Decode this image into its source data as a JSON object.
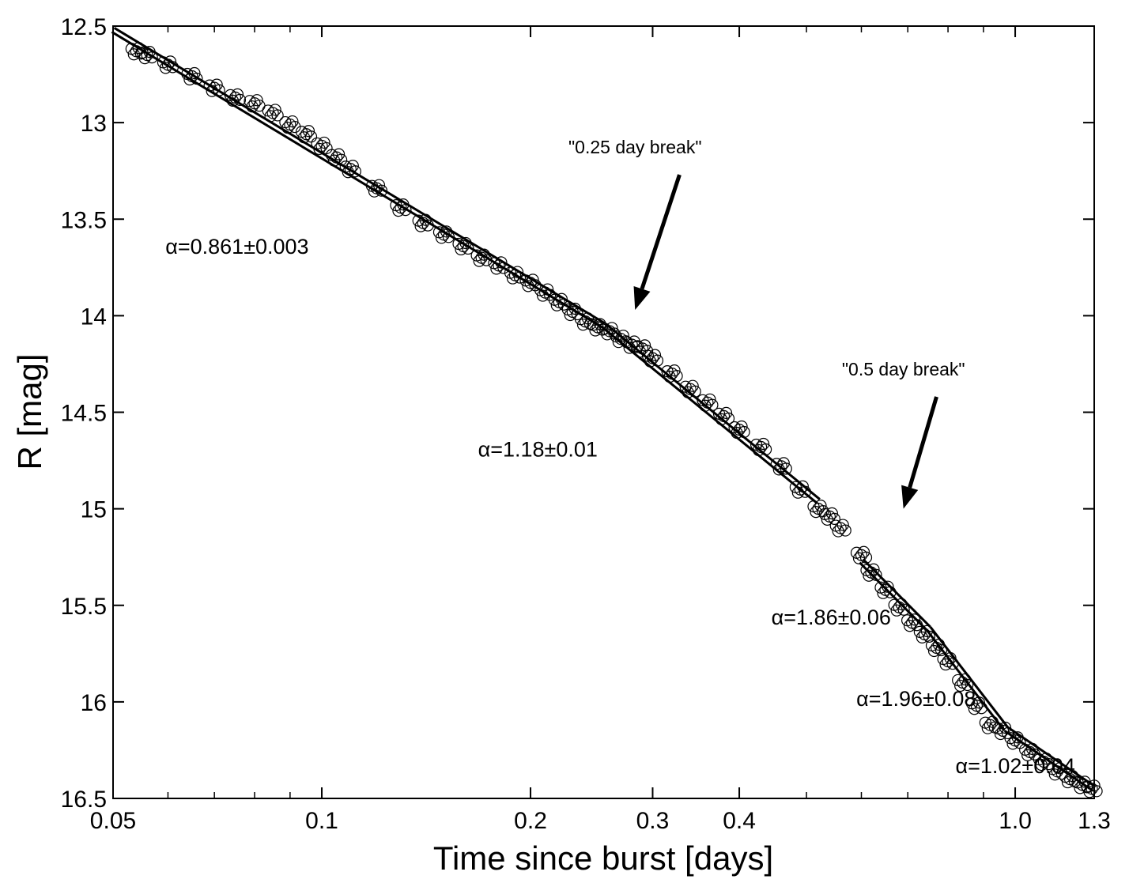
{
  "chart_data": {
    "type": "scatter",
    "title": "",
    "xlabel": "Time since burst [days]",
    "ylabel": "R [mag]",
    "x_scale": "log",
    "xlim": [
      0.05,
      1.3
    ],
    "ylim": [
      12.5,
      16.5
    ],
    "y_inverted": true,
    "grid": false,
    "legend": "none",
    "x_ticks": [
      {
        "value": 0.05,
        "label": "0.05"
      },
      {
        "value": 0.1,
        "label": "0.1"
      },
      {
        "value": 0.2,
        "label": "0.2"
      },
      {
        "value": 0.3,
        "label": "0.3"
      },
      {
        "value": 0.4,
        "label": "0.4"
      },
      {
        "value": 1.0,
        "label": "1.0"
      },
      {
        "value": 1.3,
        "label": "1.3"
      }
    ],
    "x_minor_ticks": [
      0.06,
      0.07,
      0.08,
      0.09,
      0.5,
      0.6,
      0.7,
      0.8,
      0.9
    ],
    "y_ticks": [
      {
        "value": 12.5,
        "label": "12.5"
      },
      {
        "value": 13,
        "label": "13"
      },
      {
        "value": 13.5,
        "label": "13.5"
      },
      {
        "value": 14,
        "label": "14"
      },
      {
        "value": 14.5,
        "label": "14.5"
      },
      {
        "value": 15,
        "label": "15"
      },
      {
        "value": 15.5,
        "label": "15.5"
      },
      {
        "value": 16,
        "label": "16"
      },
      {
        "value": 16.5,
        "label": "16.5"
      }
    ],
    "series": [
      {
        "marker": "open-circle",
        "x": [
          0.054,
          0.056,
          0.06,
          0.065,
          0.07,
          0.075,
          0.08,
          0.085,
          0.09,
          0.095,
          0.1,
          0.105,
          0.11,
          0.12,
          0.13,
          0.14,
          0.15,
          0.16,
          0.17,
          0.18,
          0.19,
          0.2,
          0.21,
          0.22,
          0.23,
          0.24,
          0.25,
          0.26,
          0.27,
          0.28,
          0.29,
          0.3,
          0.32,
          0.34,
          0.36,
          0.38,
          0.4,
          0.43,
          0.46,
          0.49,
          0.52,
          0.54,
          0.56,
          0.6,
          0.62,
          0.65,
          0.68,
          0.71,
          0.74,
          0.77,
          0.8,
          0.84,
          0.88,
          0.92,
          0.96,
          1.0,
          1.05,
          1.1,
          1.15,
          1.2,
          1.25,
          1.29
        ],
        "y": [
          12.63,
          12.65,
          12.7,
          12.76,
          12.82,
          12.87,
          12.9,
          12.95,
          13.01,
          13.06,
          13.12,
          13.18,
          13.24,
          13.34,
          13.44,
          13.52,
          13.58,
          13.64,
          13.7,
          13.74,
          13.79,
          13.83,
          13.88,
          13.93,
          13.98,
          14.03,
          14.06,
          14.08,
          14.12,
          14.15,
          14.17,
          14.22,
          14.3,
          14.38,
          14.45,
          14.52,
          14.59,
          14.68,
          14.78,
          14.9,
          15.0,
          15.04,
          15.1,
          15.24,
          15.33,
          15.42,
          15.51,
          15.59,
          15.65,
          15.72,
          15.79,
          15.9,
          16.02,
          16.12,
          16.15,
          16.2,
          16.26,
          16.31,
          16.36,
          16.4,
          16.43,
          16.45
        ]
      }
    ],
    "fit_lines": [
      {
        "x": [
          0.05,
          0.255
        ],
        "y": [
          12.52,
          14.05
        ]
      },
      {
        "x": [
          0.255,
          0.52
        ],
        "y": [
          14.05,
          14.96
        ]
      },
      {
        "x": [
          0.6,
          0.75
        ],
        "y": [
          15.27,
          15.62
        ]
      },
      {
        "x": [
          0.75,
          0.97
        ],
        "y": [
          15.62,
          16.14
        ]
      },
      {
        "x": [
          0.97,
          1.3
        ],
        "y": [
          16.14,
          16.45
        ]
      }
    ],
    "annotations": [
      {
        "text": "α=0.861±0.003",
        "x": 0.0595,
        "y": 13.68
      },
      {
        "text": "α=1.18±0.01",
        "x": 0.168,
        "y": 14.73
      },
      {
        "text": "α=1.86±0.06",
        "x": 0.445,
        "y": 15.6
      },
      {
        "text": "α=1.96±0.08",
        "x": 0.59,
        "y": 16.02
      },
      {
        "text": "α=1.02±0.04",
        "x": 0.82,
        "y": 16.37
      }
    ],
    "arrows": [
      {
        "label": "\"0.25 day break\"",
        "label_x": 0.283,
        "label_y": 13.16,
        "from_x": 0.328,
        "from_y": 13.27,
        "to_x": 0.283,
        "to_y": 13.97
      },
      {
        "label": "\"0.5 day break\"",
        "label_x": 0.69,
        "label_y": 14.31,
        "from_x": 0.77,
        "from_y": 14.42,
        "to_x": 0.69,
        "to_y": 15.0
      }
    ]
  }
}
